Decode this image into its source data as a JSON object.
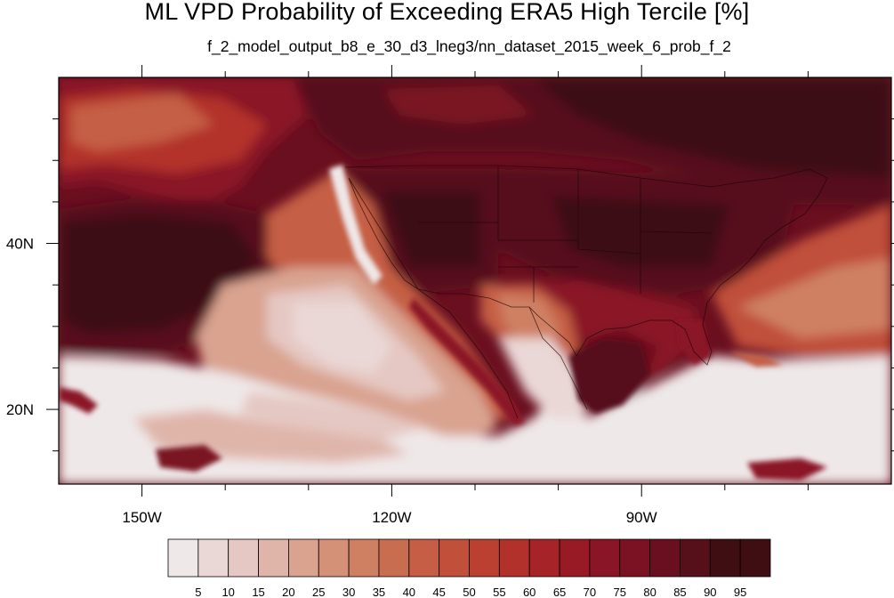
{
  "title": "ML VPD Probability of Exceeding ERA5 High Tercile [%]",
  "subtitle": "f_2_model_output_b8_e_30_d3_lneg3/nn_dataset_2015_week_6_prob_f_2",
  "lon_range": [
    -160,
    -60
  ],
  "lat_range": [
    11,
    60
  ],
  "lon_tick_labels": [
    {
      "lon": -150,
      "label": "150W"
    },
    {
      "lon": -120,
      "label": "120W"
    },
    {
      "lon": -90,
      "label": "90W"
    }
  ],
  "lat_tick_labels": [
    {
      "lat": 40,
      "label": "40N"
    },
    {
      "lat": 20,
      "label": "20N"
    }
  ],
  "colorbar": {
    "labels": [
      "5",
      "10",
      "15",
      "20",
      "25",
      "30",
      "35",
      "40",
      "45",
      "50",
      "55",
      "60",
      "65",
      "70",
      "75",
      "80",
      "85",
      "90",
      "95"
    ],
    "colors": [
      "#efe8e8",
      "#ead8d6",
      "#e5c8c3",
      "#dfb5aa",
      "#d9a390",
      "#d49178",
      "#cf8063",
      "#c96d50",
      "#c55e44",
      "#c0503a",
      "#bb4032",
      "#b3312b",
      "#a62427",
      "#971a25",
      "#8a1526",
      "#7a1224",
      "#6a0f1f",
      "#56101a",
      "#3e0e13"
    ]
  }
}
